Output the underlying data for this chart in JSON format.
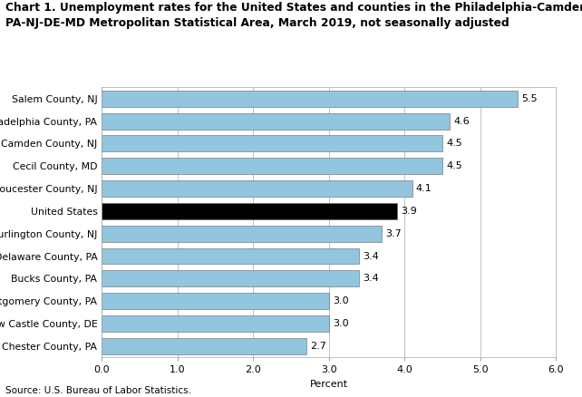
{
  "title_line1": "Chart 1. Unemployment rates for the United States and counties in the Philadelphia-Camden-Wilmington,",
  "title_line2": "PA-NJ-DE-MD Metropolitan Statistical Area, March 2019, not seasonally adjusted",
  "categories": [
    "Chester County, PA",
    "New Castle County, DE",
    "Montgomery County, PA",
    "Bucks County, PA",
    "Delaware County, PA",
    "Burlington County, NJ",
    "United States",
    "Gloucester County, NJ",
    "Cecil County, MD",
    "Camden County, NJ",
    "Philadelphia County, PA",
    "Salem County, NJ"
  ],
  "values": [
    2.7,
    3.0,
    3.0,
    3.4,
    3.4,
    3.7,
    3.9,
    4.1,
    4.5,
    4.5,
    4.6,
    5.5
  ],
  "bar_colors": [
    "#92c5de",
    "#92c5de",
    "#92c5de",
    "#92c5de",
    "#92c5de",
    "#92c5de",
    "#000000",
    "#92c5de",
    "#92c5de",
    "#92c5de",
    "#92c5de",
    "#92c5de"
  ],
  "xlabel": "Percent",
  "xlim": [
    0,
    6.0
  ],
  "xticks": [
    0.0,
    1.0,
    2.0,
    3.0,
    4.0,
    5.0,
    6.0
  ],
  "xtick_labels": [
    "0.0",
    "1.0",
    "2.0",
    "3.0",
    "4.0",
    "5.0",
    "6.0"
  ],
  "source": "Source: U.S. Bureau of Labor Statistics.",
  "background_color": "#ffffff",
  "plot_bg_color": "#ffffff",
  "grid_color": "#aaaaaa",
  "bar_edge_color": "#666666",
  "title_fontsize": 8.8,
  "label_fontsize": 7.8,
  "tick_fontsize": 8.0,
  "value_fontsize": 8.0,
  "source_fontsize": 7.5,
  "bar_height": 0.72
}
